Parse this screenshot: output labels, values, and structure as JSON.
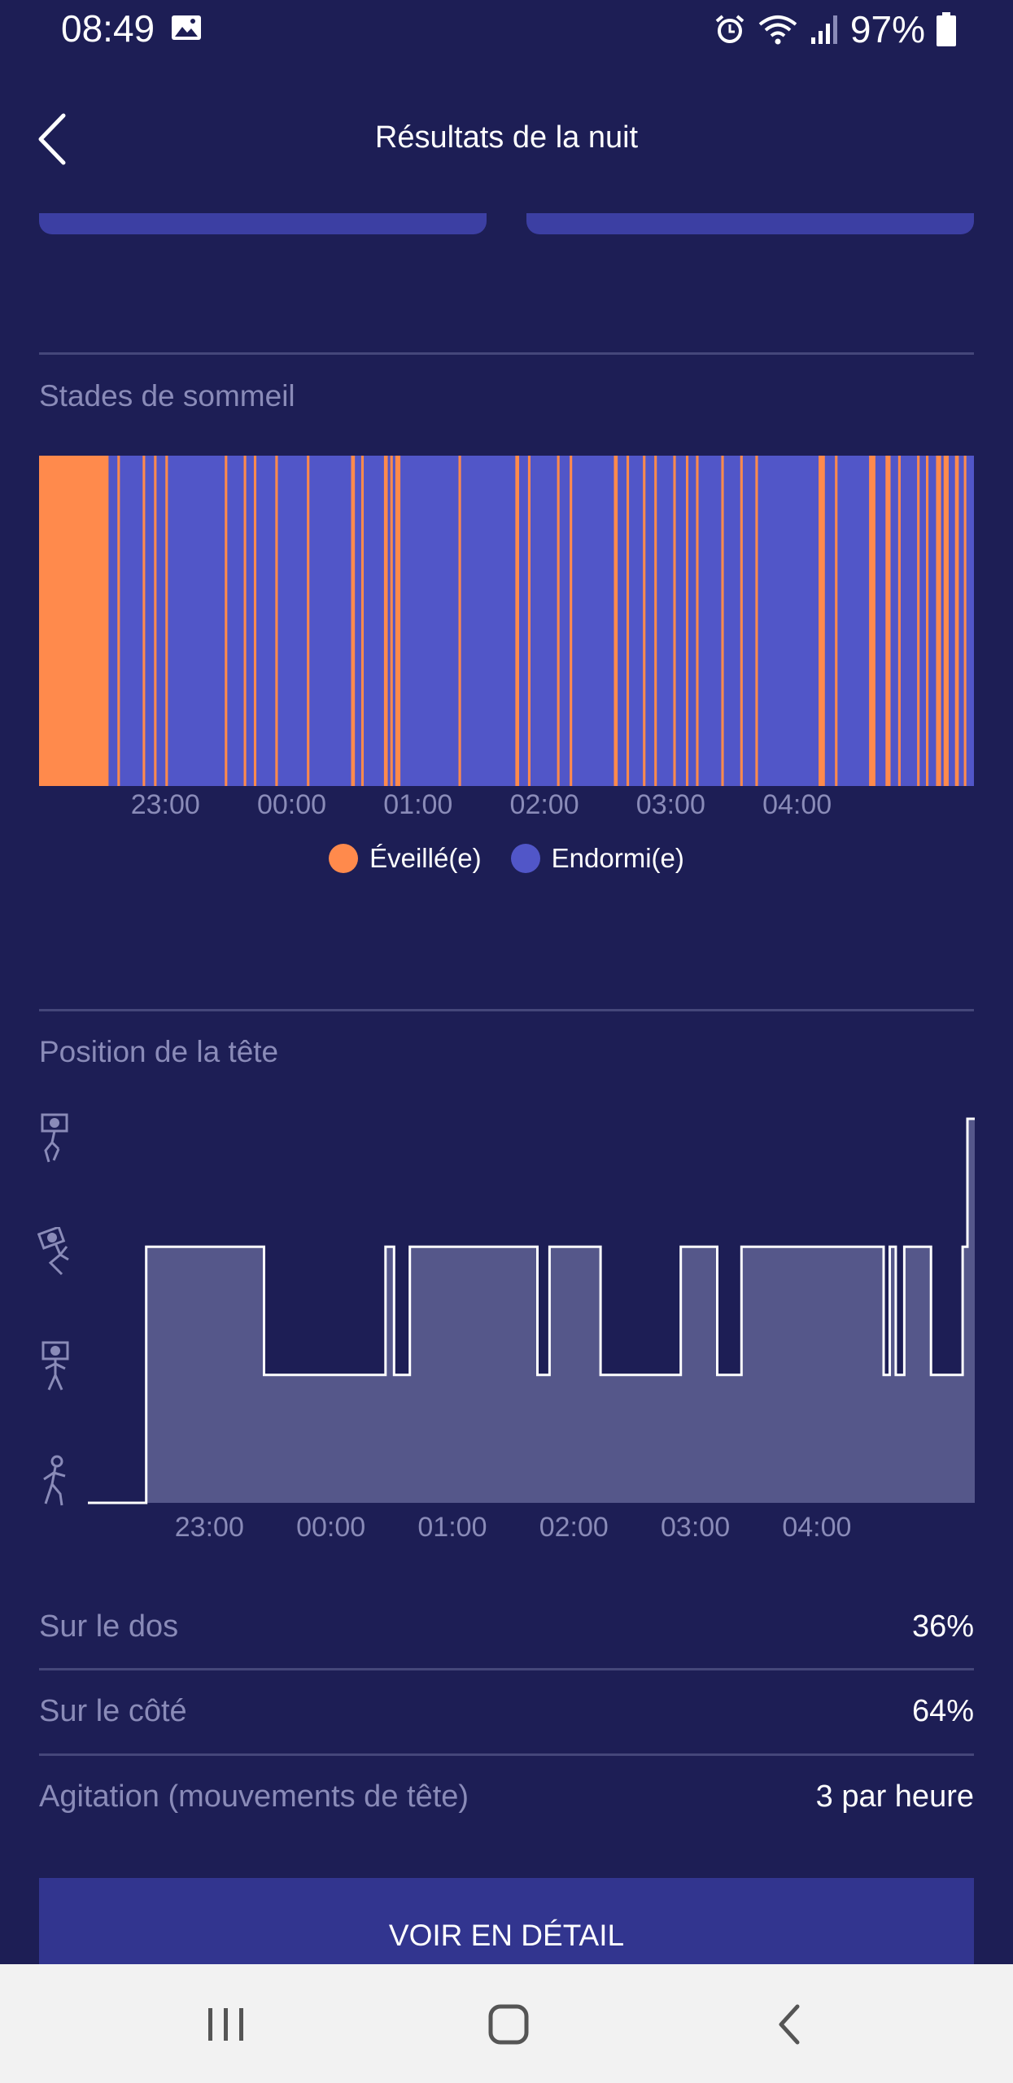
{
  "status_bar": {
    "time": "08:49",
    "battery": "97%",
    "icons": [
      "image-icon",
      "alarm-icon",
      "wifi-icon",
      "signal-icon",
      "battery-icon"
    ]
  },
  "header": {
    "title": "Résultats de la nuit",
    "back_icon": "chevron-left-icon"
  },
  "sleep_stages": {
    "title": "Stades de sommeil",
    "legend": [
      {
        "label": "Éveillé(e)",
        "color": "#ff8a4c"
      },
      {
        "label": "Endormi(e)",
        "color": "#5156c8"
      }
    ]
  },
  "head_position": {
    "title": "Position de la tête",
    "icons": [
      "person-lying-icon",
      "person-side-icon",
      "person-back-icon",
      "person-upright-icon"
    ]
  },
  "chart_data": [
    {
      "type": "timeline",
      "title": "Stades de sommeil",
      "x_ticks": [
        "23:00",
        "00:00",
        "01:00",
        "02:00",
        "03:00",
        "04:00"
      ],
      "x_tick_values": [
        23,
        24,
        25,
        26,
        27,
        28
      ],
      "xlim": [
        22.0,
        29.4
      ],
      "categories": [
        "Éveillé(e)",
        "Endormi(e)"
      ],
      "background_state": "Endormi(e)",
      "awake_segments": [
        [
          22.0,
          22.55
        ],
        [
          22.62,
          22.64
        ],
        [
          22.82,
          22.84
        ],
        [
          22.91,
          22.93
        ],
        [
          23.0,
          23.02
        ],
        [
          23.47,
          23.49
        ],
        [
          23.62,
          23.64
        ],
        [
          23.7,
          23.72
        ],
        [
          23.87,
          23.89
        ],
        [
          24.12,
          24.14
        ],
        [
          24.47,
          24.5
        ],
        [
          24.55,
          24.57
        ],
        [
          24.73,
          24.76
        ],
        [
          24.78,
          24.8
        ],
        [
          24.82,
          24.86
        ],
        [
          25.32,
          25.34
        ],
        [
          25.77,
          25.8
        ],
        [
          25.87,
          25.89
        ],
        [
          26.1,
          26.12
        ],
        [
          26.2,
          26.22
        ],
        [
          26.55,
          26.58
        ],
        [
          26.65,
          26.67
        ],
        [
          26.78,
          26.8
        ],
        [
          26.87,
          26.89
        ],
        [
          27.02,
          27.04
        ],
        [
          27.12,
          27.14
        ],
        [
          27.2,
          27.22
        ],
        [
          27.4,
          27.42
        ],
        [
          27.55,
          27.57
        ],
        [
          27.67,
          27.69
        ],
        [
          28.17,
          28.22
        ],
        [
          28.3,
          28.32
        ],
        [
          28.57,
          28.62
        ],
        [
          28.7,
          28.74
        ],
        [
          28.8,
          28.82
        ],
        [
          28.95,
          28.97
        ],
        [
          29.02,
          29.04
        ],
        [
          29.1,
          29.14
        ],
        [
          29.16,
          29.2
        ],
        [
          29.25,
          29.28
        ],
        [
          29.32,
          29.34
        ]
      ]
    },
    {
      "type": "step",
      "title": "Position de la tête",
      "x_ticks": [
        "23:00",
        "00:00",
        "01:00",
        "02:00",
        "03:00",
        "04:00"
      ],
      "x_tick_values": [
        23,
        24,
        25,
        26,
        27,
        28
      ],
      "xlim": [
        22.0,
        29.3
      ],
      "ylim": [
        0,
        3
      ],
      "levels": 4,
      "points": [
        [
          22.0,
          0
        ],
        [
          22.48,
          0
        ],
        [
          22.48,
          2
        ],
        [
          23.45,
          2
        ],
        [
          23.45,
          1
        ],
        [
          24.45,
          1
        ],
        [
          24.45,
          2
        ],
        [
          24.52,
          2
        ],
        [
          24.52,
          1
        ],
        [
          24.65,
          1
        ],
        [
          24.65,
          2
        ],
        [
          24.69,
          2
        ],
        [
          24.69,
          2
        ],
        [
          25.7,
          2
        ],
        [
          25.7,
          1
        ],
        [
          25.8,
          1
        ],
        [
          25.8,
          2
        ],
        [
          26.22,
          2
        ],
        [
          26.22,
          1
        ],
        [
          26.88,
          1
        ],
        [
          26.88,
          2
        ],
        [
          27.18,
          2
        ],
        [
          27.18,
          1
        ],
        [
          27.38,
          1
        ],
        [
          27.38,
          2
        ],
        [
          28.55,
          2
        ],
        [
          28.55,
          1
        ],
        [
          28.6,
          1
        ],
        [
          28.6,
          2
        ],
        [
          28.65,
          2
        ],
        [
          28.65,
          1
        ],
        [
          28.72,
          1
        ],
        [
          28.72,
          2
        ],
        [
          28.94,
          2
        ],
        [
          28.94,
          1
        ],
        [
          29.2,
          1
        ],
        [
          29.2,
          2
        ],
        [
          29.24,
          2
        ],
        [
          29.24,
          3
        ],
        [
          29.3,
          3
        ]
      ]
    }
  ],
  "stats": [
    {
      "label": "Sur le dos",
      "value": "36%"
    },
    {
      "label": "Sur le côté",
      "value": "64%"
    },
    {
      "label": "Agitation (mouvements de tête)",
      "value": "3 par heure"
    }
  ],
  "detail_button": "VOIR EN DÉTAIL",
  "nav_bar": {
    "icons": [
      "recent-apps-icon",
      "home-icon",
      "back-nav-icon"
    ]
  },
  "colors": {
    "background": "#1d1e55",
    "awake": "#ff8a4c",
    "asleep": "#5156c8",
    "position_fill": "#55578a",
    "muted_text": "#8a8bb8"
  }
}
